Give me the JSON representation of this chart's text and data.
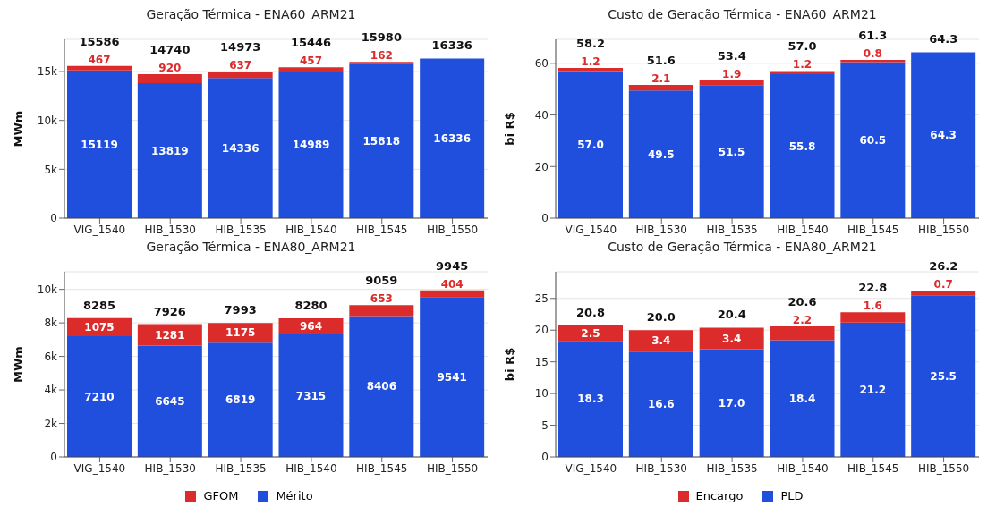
{
  "chart_data": [
    {
      "type": "bar",
      "title": "Geração Térmica - ENA60_ARM21",
      "ylabel": "MWm",
      "categories": [
        "VIG_1540",
        "HIB_1530",
        "HIB_1535",
        "HIB_1540",
        "HIB_1545",
        "HIB_1550"
      ],
      "stacked": true,
      "data_labels": true,
      "grid": "y",
      "legend": false,
      "ylim": [
        0,
        18300
      ],
      "yticks": [
        0,
        {
          "value": 5000,
          "label": "5k"
        },
        {
          "value": 10000,
          "label": "10k"
        },
        {
          "value": 15000,
          "label": "15k"
        }
      ],
      "totals": [
        "15586",
        "14740",
        "14973",
        "15446",
        "15980",
        "16336"
      ],
      "series": [
        {
          "color": "#1f4fdc",
          "values": [
            15119,
            13819,
            14336,
            14989,
            15818,
            16336
          ]
        },
        {
          "color": "#db2b2b",
          "values": [
            467,
            920,
            637,
            457,
            162,
            null
          ]
        }
      ]
    },
    {
      "type": "bar",
      "title": "Custo de Geração Térmica - ENA60_ARM21",
      "ylabel": "bi R$",
      "categories": [
        "VIG_1540",
        "HIB_1530",
        "HIB_1535",
        "HIB_1540",
        "HIB_1545",
        "HIB_1550"
      ],
      "stacked": true,
      "data_labels": false,
      "grid": "y",
      "legend": false,
      "ylim": [
        0,
        69.3
      ],
      "yticks": [
        0,
        20,
        40,
        60
      ],
      "totals": [
        "58.2",
        "51.6",
        "53.4",
        "57.0",
        "61.3",
        "64.3"
      ],
      "series": [
        {
          "color": "#1f4fdc",
          "values": [
            57.0,
            49.5,
            51.5,
            55.8,
            60.5,
            64.3
          ],
          "value_labels": [
            "57.0",
            "49.5",
            "51.5",
            "55.8",
            "60.5",
            "64.3"
          ]
        },
        {
          "color": "#db2b2b",
          "values": [
            1.2,
            2.1,
            1.9,
            1.2,
            0.8,
            null
          ],
          "value_labels": [
            "1.2",
            "2.1",
            "1.9",
            "1.2",
            "0.8",
            null
          ]
        }
      ]
    },
    {
      "type": "bar",
      "title": "Geração Térmica - ENA80_ARM21",
      "ylabel": "MWm",
      "categories": [
        "VIG_1540",
        "HIB_1530",
        "HIB_1535",
        "HIB_1540",
        "HIB_1545",
        "HIB_1550"
      ],
      "stacked": true,
      "data_labels": true,
      "grid": "y",
      "legend": "bottom",
      "ylim": [
        0,
        11050
      ],
      "yticks": [
        0,
        {
          "value": 2000,
          "label": "2k"
        },
        {
          "value": 4000,
          "label": "4k"
        },
        {
          "value": 6000,
          "label": "6k"
        },
        {
          "value": 8000,
          "label": "8k"
        },
        {
          "value": 10000,
          "label": "10k"
        }
      ],
      "totals": [
        "8285",
        "7926",
        "7993",
        "8280",
        "9059",
        "9945"
      ],
      "series": [
        {
          "name": "Mérito",
          "color": "#1f4fdc",
          "values": [
            7210,
            6645,
            6819,
            7315,
            8406,
            9541
          ]
        },
        {
          "name": "GFOM",
          "color": "#db2b2b",
          "values": [
            1075,
            1281,
            1175,
            964,
            653,
            404
          ]
        }
      ]
    },
    {
      "type": "bar",
      "title": "Custo de Geração Térmica - ENA80_ARM21",
      "ylabel": "bi R$",
      "categories": [
        "VIG_1540",
        "HIB_1530",
        "HIB_1535",
        "HIB_1540",
        "HIB_1545",
        "HIB_1550"
      ],
      "stacked": true,
      "data_labels": false,
      "grid": "y",
      "legend": "bottom",
      "ylim": [
        0,
        29.2
      ],
      "yticks": [
        0,
        5,
        10,
        15,
        20,
        25
      ],
      "totals": [
        "20.8",
        "20.0",
        "20.4",
        "20.6",
        "22.8",
        "26.2"
      ],
      "series": [
        {
          "name": "PLD",
          "color": "#1f4fdc",
          "values": [
            18.3,
            16.6,
            17.0,
            18.4,
            21.2,
            25.5
          ],
          "value_labels": [
            "18.3",
            "16.6",
            "17.0",
            "18.4",
            "21.2",
            "25.5"
          ]
        },
        {
          "name": "Encargo",
          "color": "#db2b2b",
          "values": [
            2.5,
            3.4,
            3.4,
            2.2,
            1.6,
            0.7
          ],
          "value_labels": [
            "2.5",
            "3.4",
            "3.4",
            "2.2",
            "1.6",
            "0.7"
          ]
        }
      ]
    }
  ]
}
